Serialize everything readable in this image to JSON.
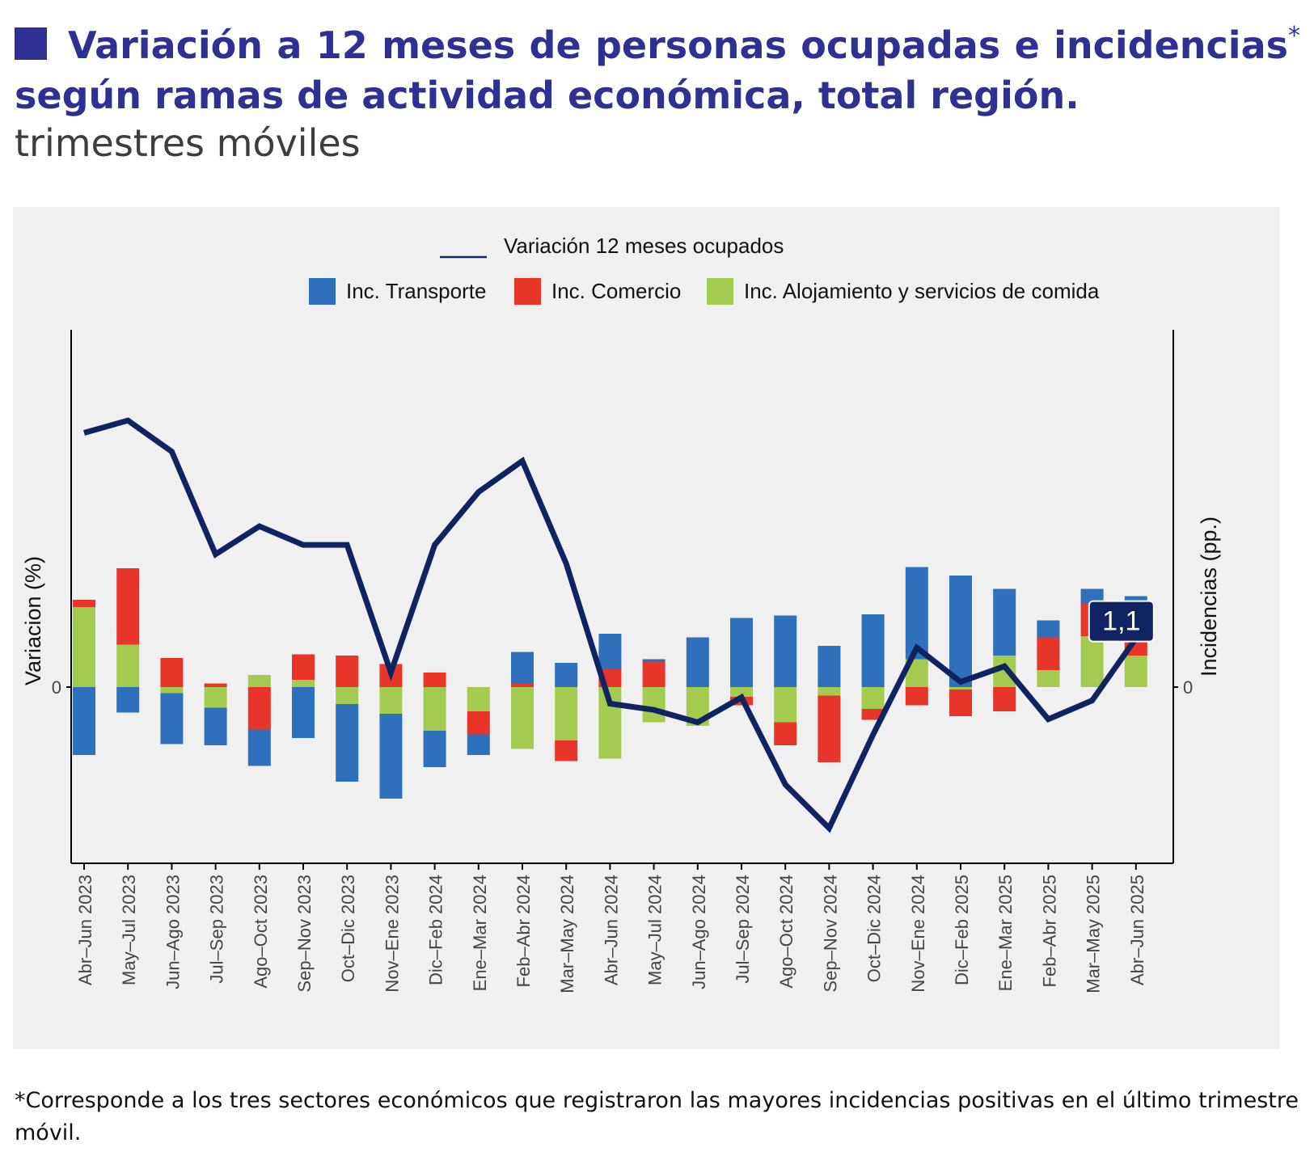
{
  "header": {
    "title_main": "Variación a 12 meses de personas ocupadas e incidencias",
    "title_mark": "*",
    "title_line2": "según ramas de actividad económica, total región.",
    "subtitle": "trimestres móviles"
  },
  "footnote": "*Corresponde a los tres sectores económicos que registraron las mayores incidencias positivas en el último trimestre móvil.",
  "colors": {
    "transporte": "#2e70bc",
    "comercio": "#e8352a",
    "alojamiento": "#a3cb50",
    "line": "#0f2360",
    "title": "#2e3192",
    "panel": "#f0f0f0"
  },
  "chart_data": {
    "type": "bar",
    "stacked": true,
    "ylabel_left": "Variacion (%)",
    "ylabel_right": "Incidencias (pp.)",
    "ytick_left": "0",
    "ytick_right": "0",
    "grid": false,
    "legend_position": "top",
    "categories": [
      "Abr–Jun 2023",
      "May–Jul 2023",
      "Jun–Ago 2023",
      "Jul–Sep 2023",
      "Ago–Oct 2023",
      "Sep–Nov 2023",
      "Oct–Dic 2023",
      "Nov–Ene 2023",
      "Dic–Feb 2024",
      "Ene–Mar 2024",
      "Feb–Abr 2024",
      "Mar–May 2024",
      "Abr–Jun 2024",
      "May–Jul 2024",
      "Jun–Ago 2024",
      "Jul–Sep 2024",
      "Ago–Oct 2024",
      "Sep–Nov 2024",
      "Oct–Dic 2024",
      "Nov–Ene 2024",
      "Dic–Feb 2025",
      "Ene–Mar 2025",
      "Feb–Abr 2025",
      "Mar–May 2025",
      "Abr–Jun 2025"
    ],
    "series": [
      {
        "name": "Inc. Transporte",
        "key": "transporte",
        "values": [
          -0.56,
          -0.21,
          -0.42,
          -0.31,
          -0.3,
          -0.42,
          -0.64,
          -0.7,
          -0.3,
          -0.17,
          0.26,
          0.2,
          0.29,
          0.02,
          0.41,
          0.57,
          0.59,
          0.34,
          0.6,
          0.76,
          0.92,
          0.55,
          0.14,
          0.12,
          0.11
        ]
      },
      {
        "name": "Inc. Comercio",
        "key": "comercio",
        "values": [
          0.06,
          0.63,
          0.24,
          0.03,
          -0.35,
          0.21,
          0.26,
          0.19,
          0.12,
          -0.19,
          0.03,
          -0.17,
          0.15,
          0.21,
          0,
          -0.07,
          -0.19,
          -0.55,
          -0.09,
          -0.15,
          -0.22,
          -0.2,
          0.27,
          0.27,
          0.38
        ]
      },
      {
        "name": "Inc. Alojamiento y servicios de comida",
        "key": "alojamiento",
        "values": [
          0.66,
          0.35,
          -0.05,
          -0.17,
          0.1,
          0.06,
          -0.14,
          -0.22,
          -0.36,
          -0.2,
          -0.51,
          -0.44,
          -0.59,
          -0.29,
          -0.32,
          -0.08,
          -0.29,
          -0.07,
          -0.18,
          0.23,
          -0.02,
          0.26,
          0.14,
          0.42,
          0.26
        ]
      }
    ],
    "line_series": {
      "name": "Variación 12 meses ocupados",
      "values": [
        7.7,
        8.1,
        7.1,
        3.8,
        4.7,
        4.1,
        4.1,
        0.0,
        4.1,
        5.8,
        6.8,
        3.5,
        -1.0,
        -1.2,
        -1.6,
        -0.8,
        -3.6,
        -5.0,
        -2.0,
        0.8,
        -0.3,
        0.2,
        -1.5,
        -0.9,
        1.1
      ]
    },
    "last_value_label": "1,1"
  }
}
